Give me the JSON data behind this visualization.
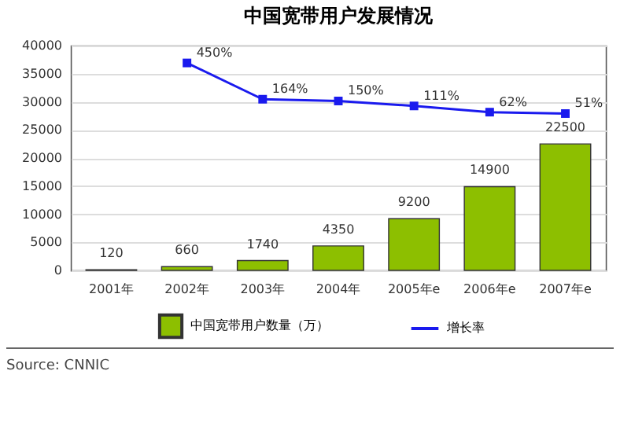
{
  "chart_data": {
    "type": "bar",
    "title": "中国宽带用户发展情况",
    "categories": [
      "2001年",
      "2002年",
      "2003年",
      "2004年",
      "2005年e",
      "2006年e",
      "2007年e"
    ],
    "series": [
      {
        "name": "中国宽带用户数量（万）",
        "color": "#8dbf00",
        "values": [
          120,
          660,
          1740,
          4350,
          9200,
          14900,
          22500
        ],
        "value_labels": [
          "120",
          "660",
          "1740",
          "4350",
          "9200",
          "14900",
          "22500"
        ]
      },
      {
        "name": "增长率",
        "type": "line",
        "axis": "y2",
        "color": "#1a1aee",
        "values": [
          null,
          450,
          164,
          150,
          111,
          62,
          51
        ],
        "value_labels": [
          null,
          "450%",
          "164%",
          "150%",
          "111%",
          "62%",
          "51%"
        ]
      }
    ],
    "ylim": [
      0,
      40000
    ],
    "yticks": [
      0,
      5000,
      10000,
      15000,
      20000,
      25000,
      30000,
      35000,
      40000
    ],
    "y2lim": [
      -1186,
      587
    ],
    "grid": "y",
    "legend": "bottom",
    "marker": "square",
    "line_style": "solid",
    "annotations": [
      "Source: CNNIC"
    ]
  }
}
